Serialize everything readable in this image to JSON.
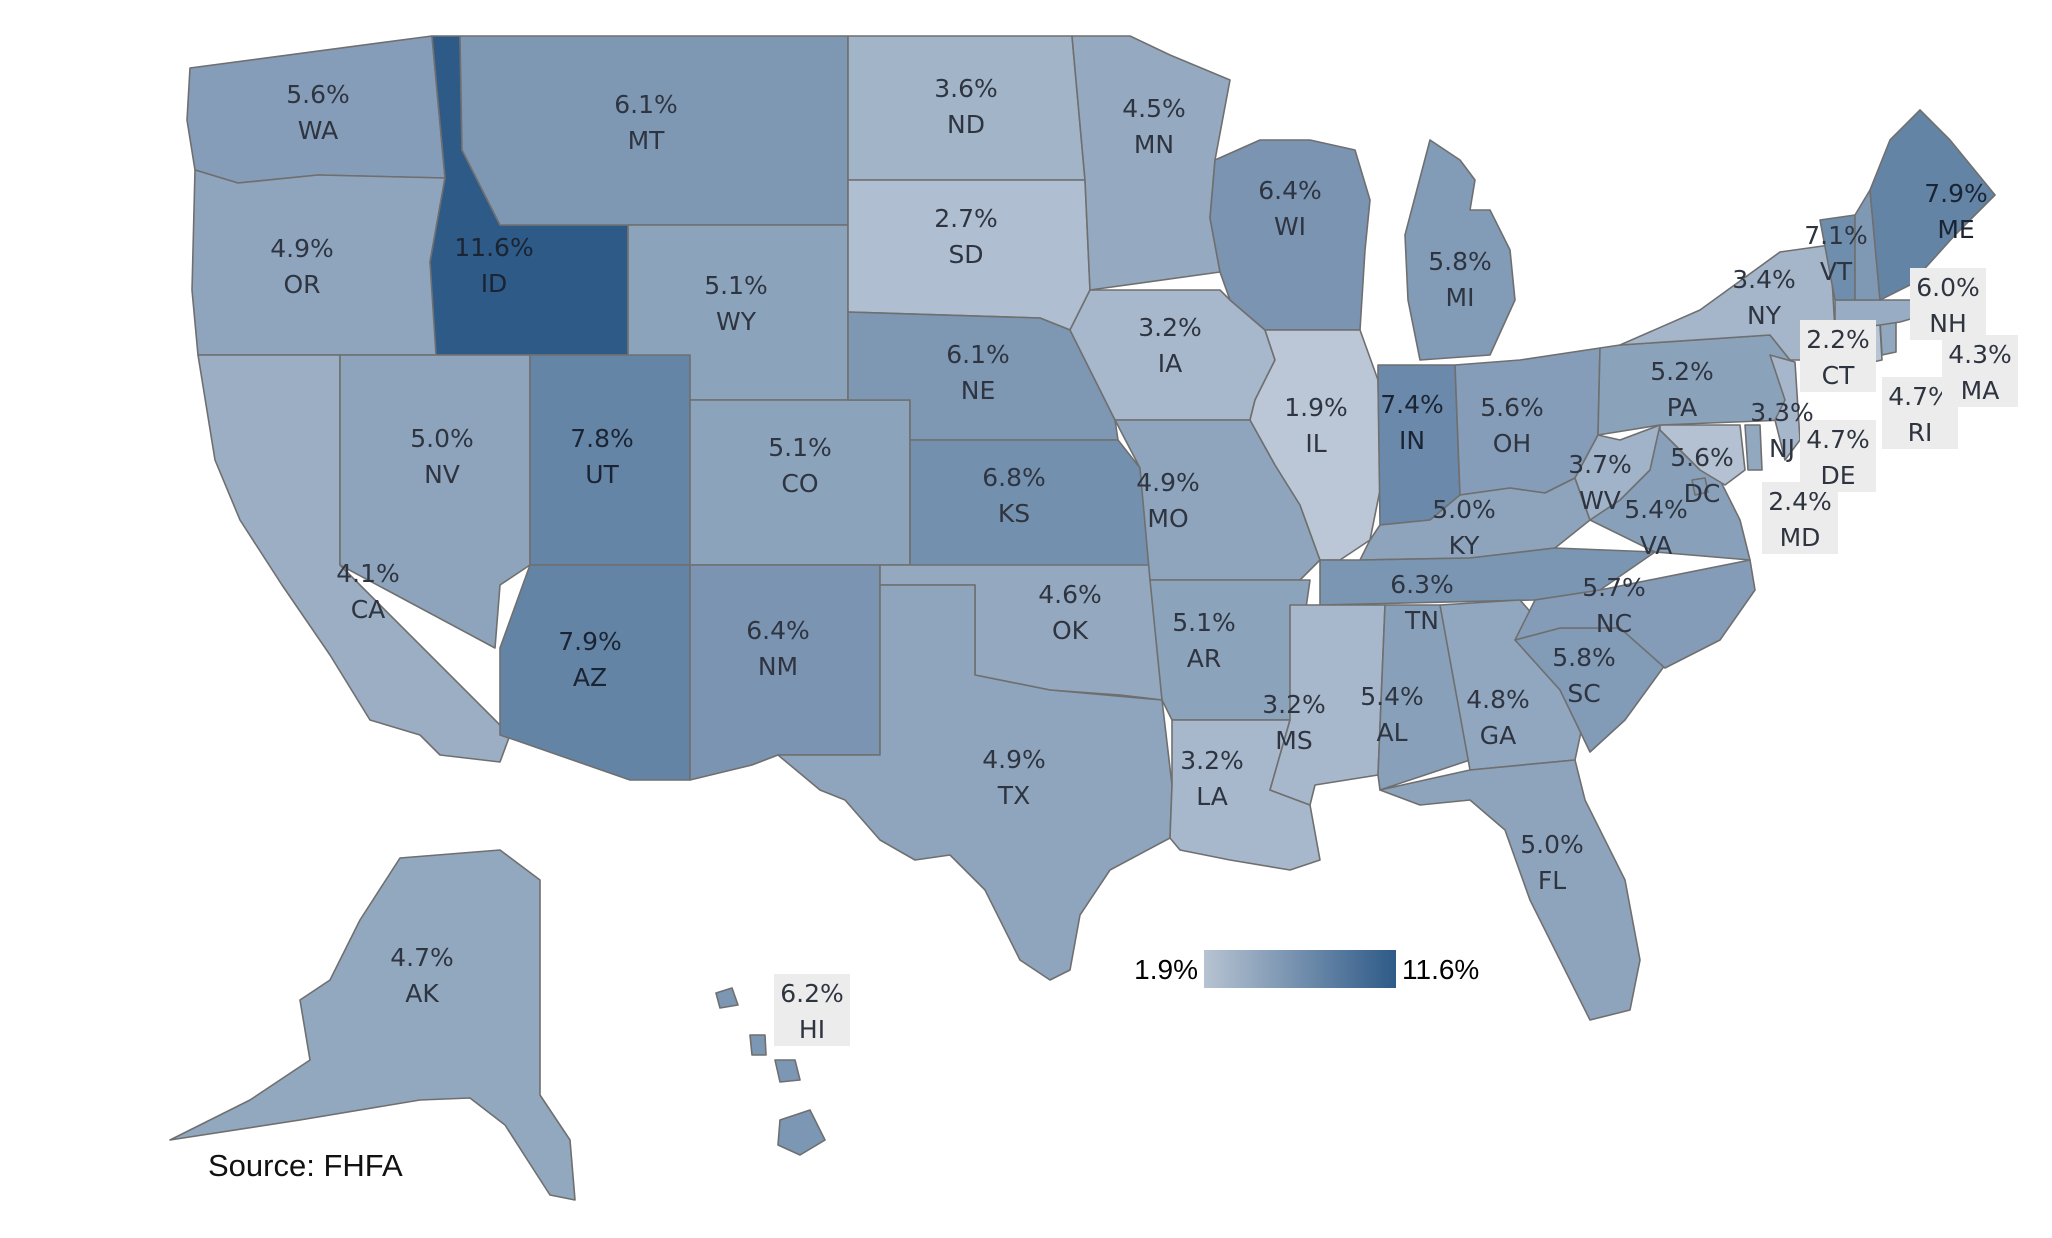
{
  "source": "Source:  FHFA",
  "legend": {
    "min_label": "1.9%",
    "max_label": "11.6%",
    "min_color": "#b7c3d2",
    "max_color": "#2e5a88"
  },
  "scale": {
    "min": 1.9,
    "max": 11.6
  },
  "states": [
    {
      "abbr": "WA",
      "value": 5.6,
      "label": "5.6%"
    },
    {
      "abbr": "OR",
      "value": 4.9,
      "label": "4.9%"
    },
    {
      "abbr": "CA",
      "value": 4.1,
      "label": "4.1%"
    },
    {
      "abbr": "ID",
      "value": 11.6,
      "label": "11.6%"
    },
    {
      "abbr": "NV",
      "value": 5.0,
      "label": "5.0%"
    },
    {
      "abbr": "MT",
      "value": 6.1,
      "label": "6.1%"
    },
    {
      "abbr": "WY",
      "value": 5.1,
      "label": "5.1%"
    },
    {
      "abbr": "UT",
      "value": 7.8,
      "label": "7.8%"
    },
    {
      "abbr": "AZ",
      "value": 7.9,
      "label": "7.9%"
    },
    {
      "abbr": "CO",
      "value": 5.1,
      "label": "5.1%"
    },
    {
      "abbr": "NM",
      "value": 6.4,
      "label": "6.4%"
    },
    {
      "abbr": "ND",
      "value": 3.6,
      "label": "3.6%"
    },
    {
      "abbr": "SD",
      "value": 2.7,
      "label": "2.7%"
    },
    {
      "abbr": "NE",
      "value": 6.1,
      "label": "6.1%"
    },
    {
      "abbr": "KS",
      "value": 6.8,
      "label": "6.8%"
    },
    {
      "abbr": "OK",
      "value": 4.6,
      "label": "4.6%"
    },
    {
      "abbr": "TX",
      "value": 4.9,
      "label": "4.9%"
    },
    {
      "abbr": "MN",
      "value": 4.5,
      "label": "4.5%"
    },
    {
      "abbr": "IA",
      "value": 3.2,
      "label": "3.2%"
    },
    {
      "abbr": "MO",
      "value": 4.9,
      "label": "4.9%"
    },
    {
      "abbr": "AR",
      "value": 5.1,
      "label": "5.1%"
    },
    {
      "abbr": "LA",
      "value": 3.2,
      "label": "3.2%"
    },
    {
      "abbr": "WI",
      "value": 6.4,
      "label": "6.4%"
    },
    {
      "abbr": "IL",
      "value": 1.9,
      "label": "1.9%"
    },
    {
      "abbr": "MI",
      "value": 5.8,
      "label": "5.8%"
    },
    {
      "abbr": "IN",
      "value": 7.4,
      "label": "7.4%"
    },
    {
      "abbr": "OH",
      "value": 5.6,
      "label": "5.6%"
    },
    {
      "abbr": "KY",
      "value": 5.0,
      "label": "5.0%"
    },
    {
      "abbr": "TN",
      "value": 6.3,
      "label": "6.3%"
    },
    {
      "abbr": "MS",
      "value": 3.2,
      "label": "3.2%"
    },
    {
      "abbr": "AL",
      "value": 5.4,
      "label": "5.4%"
    },
    {
      "abbr": "GA",
      "value": 4.8,
      "label": "4.8%"
    },
    {
      "abbr": "FL",
      "value": 5.0,
      "label": "5.0%"
    },
    {
      "abbr": "SC",
      "value": 5.8,
      "label": "5.8%"
    },
    {
      "abbr": "NC",
      "value": 5.7,
      "label": "5.7%"
    },
    {
      "abbr": "VA",
      "value": 5.4,
      "label": "5.4%"
    },
    {
      "abbr": "WV",
      "value": 3.7,
      "label": "3.7%"
    },
    {
      "abbr": "DC",
      "value": 5.6,
      "label": "5.6%"
    },
    {
      "abbr": "MD",
      "value": 2.4,
      "label": "2.4%"
    },
    {
      "abbr": "DE",
      "value": 4.7,
      "label": "4.7%"
    },
    {
      "abbr": "PA",
      "value": 5.2,
      "label": "5.2%"
    },
    {
      "abbr": "NJ",
      "value": 3.3,
      "label": "3.3%"
    },
    {
      "abbr": "NY",
      "value": 3.4,
      "label": "3.4%"
    },
    {
      "abbr": "CT",
      "value": 2.2,
      "label": "2.2%"
    },
    {
      "abbr": "RI",
      "value": 4.7,
      "label": "4.7%"
    },
    {
      "abbr": "MA",
      "value": 4.3,
      "label": "4.3%"
    },
    {
      "abbr": "VT",
      "value": 7.1,
      "label": "7.1%"
    },
    {
      "abbr": "NH",
      "value": 6.0,
      "label": "6.0%"
    },
    {
      "abbr": "ME",
      "value": 7.9,
      "label": "7.9%"
    },
    {
      "abbr": "AK",
      "value": 4.7,
      "label": "4.7%"
    },
    {
      "abbr": "HI",
      "value": 6.2,
      "label": "6.2%"
    }
  ]
}
